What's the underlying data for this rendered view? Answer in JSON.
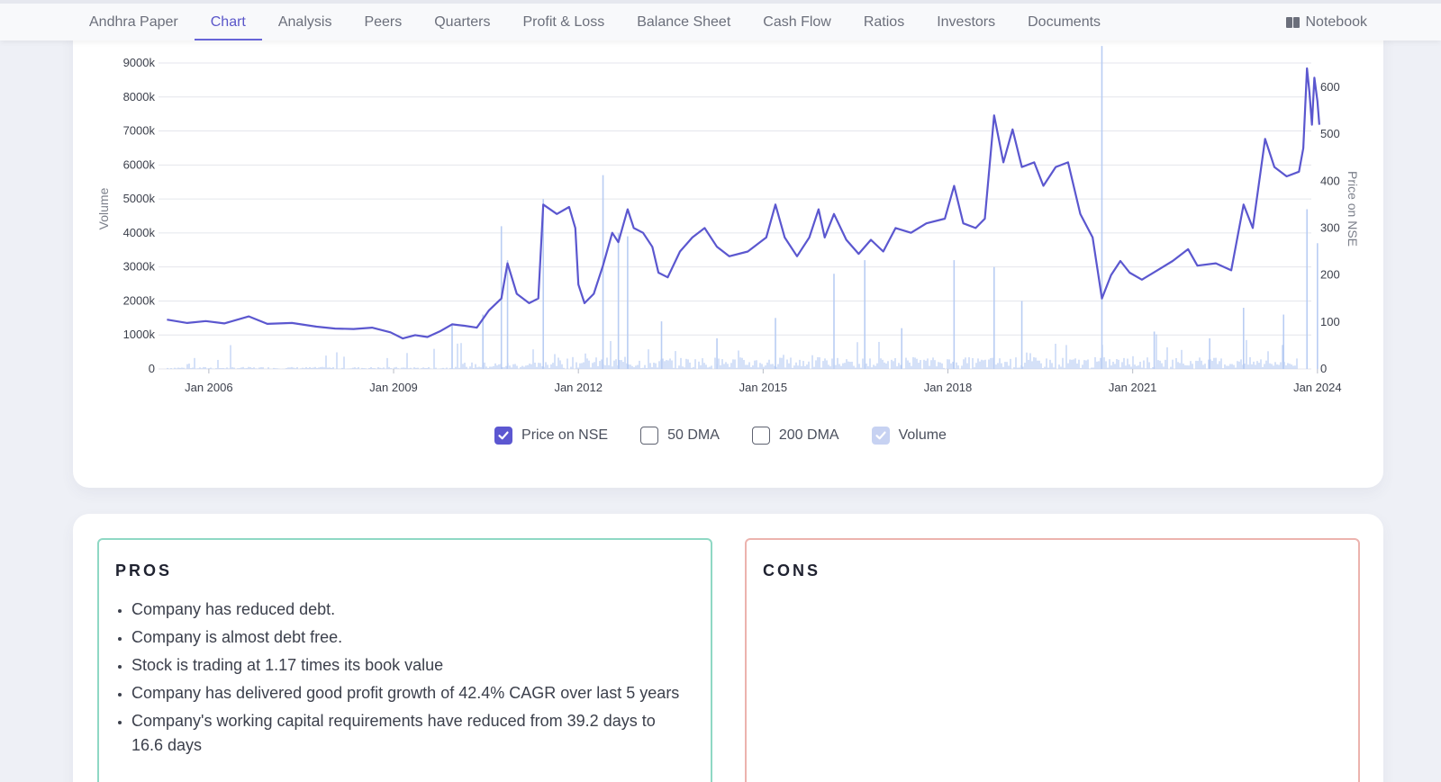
{
  "nav": {
    "tabs": [
      "Andhra Paper",
      "Chart",
      "Analysis",
      "Peers",
      "Quarters",
      "Profit & Loss",
      "Balance Sheet",
      "Cash Flow",
      "Ratios",
      "Investors",
      "Documents"
    ],
    "active_tab": "Chart",
    "notebook_label": "Notebook"
  },
  "legend": {
    "price_label": "Price on NSE",
    "dma50_label": "50 DMA",
    "dma200_label": "200 DMA",
    "volume_label": "Volume",
    "price_checked": true,
    "dma50_checked": false,
    "dma200_checked": false,
    "volume_checked": true
  },
  "pros": {
    "title": "PROS",
    "items": [
      "Company has reduced debt.",
      "Company is almost debt free.",
      "Stock is trading at 1.17 times its book value",
      "Company has delivered good profit growth of 42.4% CAGR over last 5 years",
      "Company's working capital requirements have reduced from 39.2 days to 16.6 days"
    ]
  },
  "cons": {
    "title": "CONS",
    "items": []
  },
  "colors": {
    "price_line": "#5b57cf",
    "volume_bars": "#b9cdf3",
    "pros_border": "#8fd8c4",
    "cons_border": "#ecb3ae",
    "accent": "#6764d8"
  },
  "chart_data": {
    "type": "line",
    "left_axis_label": "Volume",
    "right_axis_label": "Price on NSE",
    "left_ticks": [
      "0",
      "1000k",
      "2000k",
      "3000k",
      "4000k",
      "5000k",
      "6000k",
      "7000k",
      "8000k",
      "9000k"
    ],
    "right_ticks": [
      "0",
      "100",
      "200",
      "300",
      "400",
      "500",
      "600"
    ],
    "x_ticks": [
      "Jan 2006",
      "Jan 2009",
      "Jan 2012",
      "Jan 2015",
      "Jan 2018",
      "Jan 2021",
      "Jan 2024"
    ],
    "x_range": [
      2005.25,
      2023.85
    ],
    "volume_range": [
      0,
      9000
    ],
    "price_range": [
      0,
      640
    ],
    "grid": true,
    "price_series": {
      "name": "Price on NSE",
      "points": [
        [
          2005.27,
          105
        ],
        [
          2005.6,
          98
        ],
        [
          2005.9,
          102
        ],
        [
          2006.2,
          97
        ],
        [
          2006.6,
          112
        ],
        [
          2006.9,
          96
        ],
        [
          2007.3,
          98
        ],
        [
          2007.7,
          90
        ],
        [
          2008.0,
          86
        ],
        [
          2008.3,
          85
        ],
        [
          2008.6,
          88
        ],
        [
          2008.9,
          78
        ],
        [
          2009.1,
          65
        ],
        [
          2009.3,
          72
        ],
        [
          2009.5,
          68
        ],
        [
          2009.7,
          80
        ],
        [
          2009.9,
          95
        ],
        [
          2010.1,
          92
        ],
        [
          2010.3,
          88
        ],
        [
          2010.5,
          125
        ],
        [
          2010.7,
          150
        ],
        [
          2010.8,
          225
        ],
        [
          2010.95,
          160
        ],
        [
          2011.15,
          140
        ],
        [
          2011.3,
          150
        ],
        [
          2011.38,
          350
        ],
        [
          2011.6,
          330
        ],
        [
          2011.8,
          345
        ],
        [
          2011.9,
          300
        ],
        [
          2011.95,
          180
        ],
        [
          2012.05,
          140
        ],
        [
          2012.2,
          160
        ],
        [
          2012.35,
          220
        ],
        [
          2012.5,
          290
        ],
        [
          2012.6,
          270
        ],
        [
          2012.75,
          340
        ],
        [
          2012.85,
          300
        ],
        [
          2013.0,
          290
        ],
        [
          2013.15,
          260
        ],
        [
          2013.25,
          205
        ],
        [
          2013.4,
          195
        ],
        [
          2013.6,
          250
        ],
        [
          2013.8,
          280
        ],
        [
          2014.0,
          300
        ],
        [
          2014.2,
          260
        ],
        [
          2014.4,
          240
        ],
        [
          2014.7,
          250
        ],
        [
          2015.0,
          280
        ],
        [
          2015.15,
          350
        ],
        [
          2015.3,
          280
        ],
        [
          2015.5,
          240
        ],
        [
          2015.7,
          280
        ],
        [
          2015.85,
          340
        ],
        [
          2015.95,
          280
        ],
        [
          2016.1,
          330
        ],
        [
          2016.3,
          275
        ],
        [
          2016.5,
          245
        ],
        [
          2016.7,
          275
        ],
        [
          2016.9,
          250
        ],
        [
          2017.1,
          300
        ],
        [
          2017.35,
          290
        ],
        [
          2017.6,
          310
        ],
        [
          2017.9,
          320
        ],
        [
          2018.05,
          390
        ],
        [
          2018.2,
          310
        ],
        [
          2018.4,
          300
        ],
        [
          2018.55,
          320
        ],
        [
          2018.7,
          540
        ],
        [
          2018.85,
          440
        ],
        [
          2019.0,
          510
        ],
        [
          2019.15,
          430
        ],
        [
          2019.35,
          440
        ],
        [
          2019.5,
          390
        ],
        [
          2019.7,
          430
        ],
        [
          2019.9,
          440
        ],
        [
          2020.1,
          330
        ],
        [
          2020.3,
          280
        ],
        [
          2020.45,
          150
        ],
        [
          2020.6,
          200
        ],
        [
          2020.75,
          230
        ],
        [
          2020.9,
          205
        ],
        [
          2021.1,
          190
        ],
        [
          2021.35,
          210
        ],
        [
          2021.6,
          230
        ],
        [
          2021.85,
          255
        ],
        [
          2022.0,
          220
        ],
        [
          2022.3,
          225
        ],
        [
          2022.55,
          210
        ],
        [
          2022.75,
          350
        ],
        [
          2022.9,
          300
        ],
        [
          2023.1,
          490
        ],
        [
          2023.25,
          430
        ],
        [
          2023.45,
          410
        ],
        [
          2023.65,
          420
        ],
        [
          2023.72,
          470
        ],
        [
          2023.78,
          640
        ],
        [
          2023.82,
          590
        ],
        [
          2023.86,
          520
        ],
        [
          2023.9,
          620
        ],
        [
          2023.95,
          570
        ],
        [
          2023.98,
          520
        ]
      ]
    },
    "volume_series": {
      "name": "Volume",
      "points": [
        [
          2010.7,
          4200
        ],
        [
          2010.8,
          3200
        ],
        [
          2011.38,
          5000
        ],
        [
          2012.35,
          5700
        ],
        [
          2012.6,
          4000
        ],
        [
          2012.75,
          3900
        ],
        [
          2015.15,
          1500
        ],
        [
          2016.1,
          2800
        ],
        [
          2016.6,
          3200
        ],
        [
          2018.05,
          3200
        ],
        [
          2018.7,
          3000
        ],
        [
          2020.45,
          9500
        ],
        [
          2022.75,
          1800
        ],
        [
          2023.78,
          4700
        ],
        [
          2023.95,
          3700
        ],
        [
          2009.9,
          1300
        ],
        [
          2010.4,
          1600
        ],
        [
          2013.3,
          1400
        ],
        [
          2014.2,
          900
        ],
        [
          2017.2,
          1200
        ],
        [
          2019.15,
          2000
        ],
        [
          2021.3,
          1100
        ],
        [
          2022.2,
          900
        ],
        [
          2023.4,
          1600
        ]
      ]
    }
  }
}
